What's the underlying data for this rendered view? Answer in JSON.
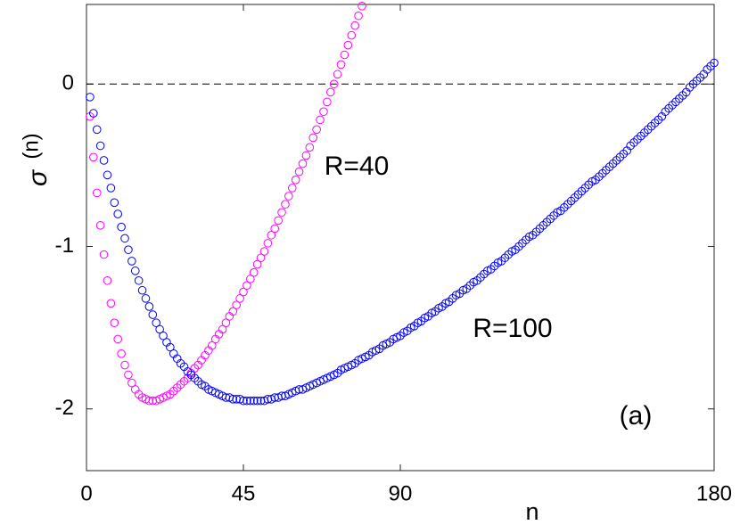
{
  "chart_data": {
    "type": "scatter",
    "xlabel": "n",
    "ylabel": "σ",
    "ylabel_superscript": "(n)",
    "annotation": "(a)",
    "xlim": [
      0,
      180
    ],
    "xticks": [
      0,
      45,
      90,
      180
    ],
    "ylim": [
      -2.38,
      0.49
    ],
    "yticks": [
      -2,
      -1,
      0
    ],
    "reference_line": 0,
    "marker": "open-circle",
    "series": [
      {
        "name": "R=40",
        "color": "#ff00ff",
        "x": [
          1,
          2,
          3,
          4,
          5,
          6,
          7,
          8,
          9,
          10,
          11,
          12,
          13,
          14,
          15,
          16,
          17,
          18,
          19,
          20,
          21,
          22,
          23,
          24,
          25,
          26,
          27,
          28,
          29,
          30,
          31,
          32,
          33,
          34,
          35,
          36,
          37,
          38,
          39,
          40,
          41,
          42,
          43,
          44,
          45,
          46,
          47,
          48,
          49,
          50,
          51,
          52,
          53,
          54,
          55,
          56,
          57,
          58,
          59,
          60,
          61,
          62,
          63,
          64,
          65,
          66,
          67,
          68,
          69,
          70,
          71,
          72,
          73,
          74,
          75,
          76,
          77,
          78,
          79
        ],
        "values": [
          -0.2,
          -0.45,
          -0.67,
          -0.87,
          -1.05,
          -1.21,
          -1.35,
          -1.47,
          -1.57,
          -1.66,
          -1.73,
          -1.79,
          -1.84,
          -1.88,
          -1.91,
          -1.93,
          -1.94,
          -1.95,
          -1.95,
          -1.95,
          -1.94,
          -1.93,
          -1.92,
          -1.91,
          -1.89,
          -1.87,
          -1.85,
          -1.83,
          -1.81,
          -1.78,
          -1.75,
          -1.73,
          -1.7,
          -1.67,
          -1.64,
          -1.61,
          -1.57,
          -1.54,
          -1.51,
          -1.47,
          -1.43,
          -1.4,
          -1.36,
          -1.32,
          -1.28,
          -1.24,
          -1.2,
          -1.16,
          -1.11,
          -1.07,
          -1.03,
          -0.98,
          -0.93,
          -0.89,
          -0.84,
          -0.79,
          -0.74,
          -0.69,
          -0.64,
          -0.59,
          -0.54,
          -0.49,
          -0.44,
          -0.39,
          -0.33,
          -0.28,
          -0.22,
          -0.17,
          -0.11,
          -0.05,
          0.0,
          0.06,
          0.12,
          0.18,
          0.24,
          0.3,
          0.36,
          0.42,
          0.48
        ]
      },
      {
        "name": "R=100",
        "color": "#0000ff",
        "x": [
          1,
          2,
          3,
          4,
          5,
          6,
          7,
          8,
          9,
          10,
          11,
          12,
          13,
          14,
          15,
          16,
          17,
          18,
          19,
          20,
          21,
          22,
          23,
          24,
          25,
          26,
          27,
          28,
          29,
          30,
          31,
          32,
          33,
          34,
          35,
          36,
          37,
          38,
          39,
          40,
          41,
          42,
          43,
          44,
          45,
          46,
          47,
          48,
          49,
          50,
          51,
          52,
          53,
          54,
          55,
          56,
          57,
          58,
          59,
          60,
          61,
          62,
          63,
          64,
          65,
          66,
          67,
          68,
          69,
          70,
          71,
          72,
          73,
          74,
          75,
          76,
          77,
          78,
          79,
          80,
          81,
          82,
          83,
          84,
          85,
          86,
          87,
          88,
          89,
          90,
          91,
          92,
          93,
          94,
          95,
          96,
          97,
          98,
          99,
          100,
          101,
          102,
          103,
          104,
          105,
          106,
          107,
          108,
          109,
          110,
          111,
          112,
          113,
          114,
          115,
          116,
          117,
          118,
          119,
          120,
          121,
          122,
          123,
          124,
          125,
          126,
          127,
          128,
          129,
          130,
          131,
          132,
          133,
          134,
          135,
          136,
          137,
          138,
          139,
          140,
          141,
          142,
          143,
          144,
          145,
          146,
          147,
          148,
          149,
          150,
          151,
          152,
          153,
          154,
          155,
          156,
          157,
          158,
          159,
          160,
          161,
          162,
          163,
          164,
          165,
          166,
          167,
          168,
          169,
          170,
          171,
          172,
          173,
          174,
          175,
          176,
          177,
          178,
          179,
          180
        ],
        "values": [
          -0.08,
          -0.18,
          -0.28,
          -0.38,
          -0.47,
          -0.56,
          -0.64,
          -0.73,
          -0.8,
          -0.88,
          -0.95,
          -1.02,
          -1.09,
          -1.15,
          -1.21,
          -1.27,
          -1.32,
          -1.37,
          -1.42,
          -1.47,
          -1.51,
          -1.55,
          -1.59,
          -1.62,
          -1.66,
          -1.69,
          -1.72,
          -1.74,
          -1.77,
          -1.79,
          -1.81,
          -1.83,
          -1.85,
          -1.86,
          -1.88,
          -1.89,
          -1.9,
          -1.91,
          -1.92,
          -1.93,
          -1.93,
          -1.94,
          -1.94,
          -1.94,
          -1.95,
          -1.95,
          -1.95,
          -1.95,
          -1.95,
          -1.95,
          -1.95,
          -1.94,
          -1.94,
          -1.93,
          -1.93,
          -1.92,
          -1.92,
          -1.91,
          -1.9,
          -1.89,
          -1.88,
          -1.88,
          -1.87,
          -1.86,
          -1.85,
          -1.84,
          -1.83,
          -1.82,
          -1.81,
          -1.8,
          -1.79,
          -1.78,
          -1.76,
          -1.75,
          -1.74,
          -1.73,
          -1.72,
          -1.7,
          -1.69,
          -1.68,
          -1.67,
          -1.65,
          -1.64,
          -1.63,
          -1.61,
          -1.6,
          -1.59,
          -1.57,
          -1.56,
          -1.55,
          -1.53,
          -1.52,
          -1.5,
          -1.49,
          -1.47,
          -1.46,
          -1.44,
          -1.43,
          -1.41,
          -1.4,
          -1.38,
          -1.37,
          -1.35,
          -1.34,
          -1.32,
          -1.3,
          -1.29,
          -1.27,
          -1.26,
          -1.24,
          -1.22,
          -1.21,
          -1.19,
          -1.17,
          -1.15,
          -1.14,
          -1.12,
          -1.1,
          -1.09,
          -1.07,
          -1.05,
          -1.03,
          -1.02,
          -1.0,
          -0.98,
          -0.96,
          -0.94,
          -0.93,
          -0.91,
          -0.89,
          -0.87,
          -0.85,
          -0.83,
          -0.81,
          -0.79,
          -0.78,
          -0.76,
          -0.74,
          -0.72,
          -0.7,
          -0.68,
          -0.66,
          -0.64,
          -0.62,
          -0.6,
          -0.59,
          -0.57,
          -0.55,
          -0.53,
          -0.51,
          -0.49,
          -0.47,
          -0.45,
          -0.43,
          -0.41,
          -0.38,
          -0.36,
          -0.34,
          -0.32,
          -0.3,
          -0.28,
          -0.26,
          -0.24,
          -0.22,
          -0.2,
          -0.17,
          -0.15,
          -0.13,
          -0.11,
          -0.09,
          -0.07,
          -0.05,
          -0.02,
          0.0,
          0.02,
          0.04,
          0.06,
          0.09,
          0.11,
          0.13
        ]
      }
    ]
  }
}
